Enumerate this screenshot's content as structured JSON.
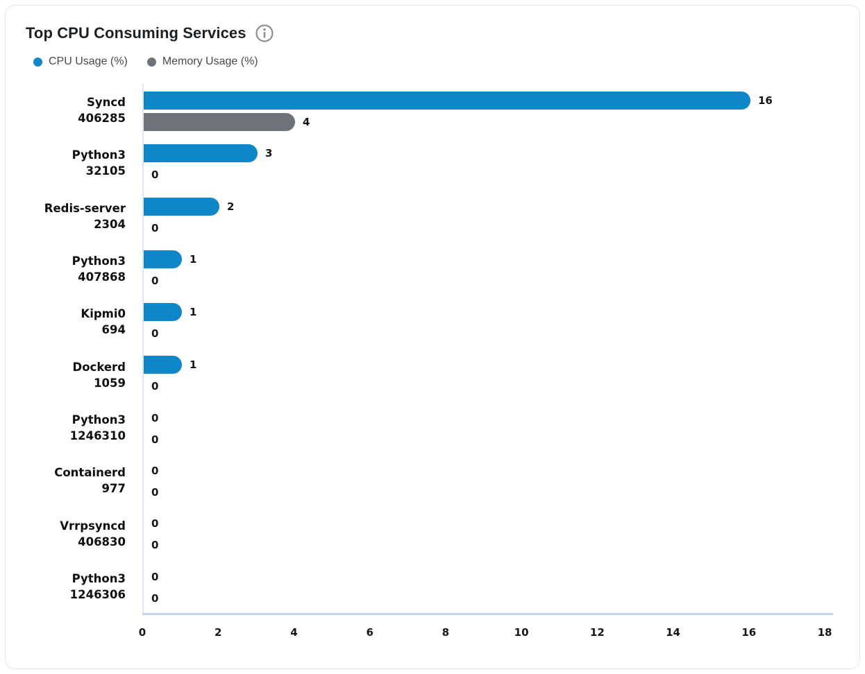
{
  "card": {
    "title": "Top CPU Consuming Services"
  },
  "chart_data": {
    "type": "bar",
    "orientation": "horizontal",
    "title": "Top CPU Consuming Services",
    "categories": [
      {
        "name": "Syncd",
        "pid": "406285"
      },
      {
        "name": "Python3",
        "pid": "32105"
      },
      {
        "name": "Redis-server",
        "pid": "2304"
      },
      {
        "name": "Python3",
        "pid": "407868"
      },
      {
        "name": "Kipmi0",
        "pid": "694"
      },
      {
        "name": "Dockerd",
        "pid": "1059"
      },
      {
        "name": "Python3",
        "pid": "1246310"
      },
      {
        "name": "Containerd",
        "pid": "977"
      },
      {
        "name": "Vrrpsyncd",
        "pid": "406830"
      },
      {
        "name": "Python3",
        "pid": "1246306"
      }
    ],
    "series": [
      {
        "name": "CPU Usage (%)",
        "slug": "cpu-usage",
        "color": "#0e86c7",
        "values": [
          16,
          3,
          2,
          1,
          1,
          1,
          0,
          0,
          0,
          0
        ]
      },
      {
        "name": "Memory Usage (%)",
        "slug": "memory-usage",
        "color": "#707279",
        "values": [
          4,
          0,
          0,
          0,
          0,
          0,
          0,
          0,
          0,
          0
        ]
      }
    ],
    "xlim": [
      0,
      18
    ],
    "x_ticks": [
      0,
      2,
      4,
      6,
      8,
      10,
      12,
      14,
      16,
      18
    ],
    "data_labels": true,
    "legend_position": "top-left",
    "grid": false
  },
  "colors": {
    "axis_line": "#c9d5ec",
    "axis_vertical_line": "#e2e6f3",
    "card_border": "#e2e4e7",
    "info_icon": "#8b8e93"
  }
}
